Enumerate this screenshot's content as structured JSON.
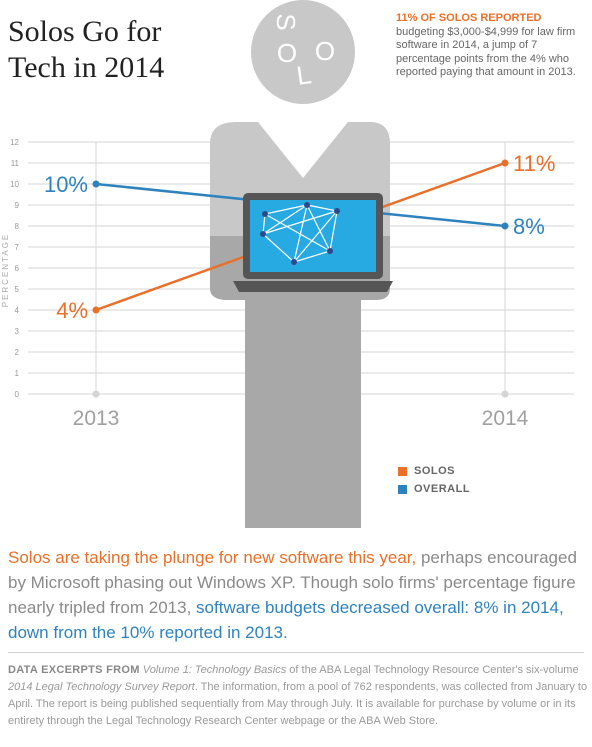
{
  "title_lines": [
    "Solos Go for",
    "Tech in 2014"
  ],
  "figure_lettering": "SOLO",
  "note": {
    "heading": "11% OF SOLOS REPORTED",
    "text": "budgeting $3,000-$4,999 for law firm software in 2014, a jump of 7 percentage points from the 4% who reported paying that amount in 2013."
  },
  "chart_data": {
    "type": "line",
    "x": [
      "2013",
      "2014"
    ],
    "ylabel": "PERCENTAGE",
    "ylim": [
      0,
      12
    ],
    "yticks": [
      0,
      1,
      2,
      3,
      4,
      5,
      6,
      7,
      8,
      9,
      10,
      11,
      12
    ],
    "grid": true,
    "legend_placement": "bottom-right",
    "series": [
      {
        "name": "SOLOS",
        "values": [
          4,
          11
        ],
        "labels": [
          "4%",
          "11%"
        ],
        "color": "#e8702a"
      },
      {
        "name": "OVERALL",
        "values": [
          10,
          8
        ],
        "labels": [
          "10%",
          "8%"
        ],
        "color": "#2e82bd"
      }
    ]
  },
  "body": {
    "part1": "Solos are taking the plunge for new software this year,",
    "part2": " perhaps encouraged by Microsoft phasing out Windows XP. Though solo firms' percentage figure nearly tripled from 2013, ",
    "part3": "software budgets decreased overall: 8% in 2014, down from the 10% reported in 2013."
  },
  "footnote": {
    "lead": "DATA EXCERPTS FROM",
    "vol": " Volume 1: Technology Basics",
    "t1": " of the ABA Legal Technology Resource Center's six-volume ",
    "report": "2014 Legal Technology Survey Report",
    "t2": ". The information, from a pool of 762 respondents, was collected from January to April. The report is being published sequentially from May through July. It is available for purchase by volume or in its entirety through the Legal Technology Research Center webpage or the ABA Web Store."
  }
}
